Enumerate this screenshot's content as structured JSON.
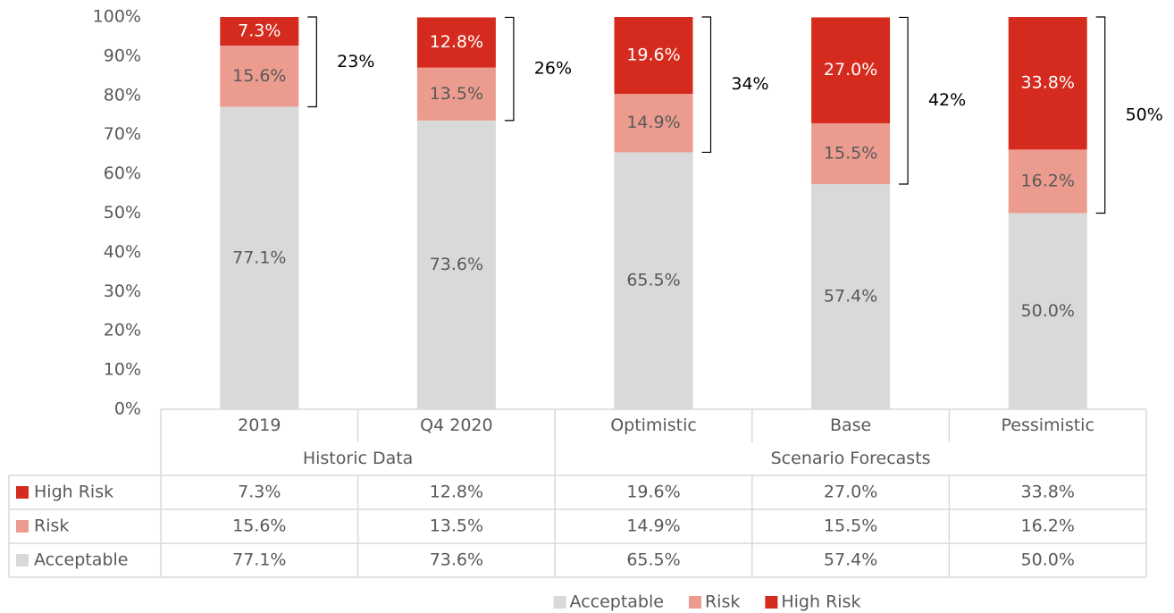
{
  "chart_data": {
    "type": "stacked_bar",
    "categories": [
      "2019",
      "Q4 2020",
      "Optimistic",
      "Base",
      "Pessimistic"
    ],
    "groups": [
      {
        "label": "Historic Data",
        "categories": [
          "2019",
          "Q4 2020"
        ]
      },
      {
        "label": "Scenario Forecasts",
        "categories": [
          "Optimistic",
          "Base",
          "Pessimistic"
        ]
      }
    ],
    "series": [
      {
        "name": "Acceptable",
        "color": "#d9d9d9",
        "label_color": "#595959",
        "values": [
          77.1,
          73.6,
          65.5,
          57.4,
          50.0
        ],
        "value_labels": [
          "77.1%",
          "73.6%",
          "65.5%",
          "57.4%",
          "50.0%"
        ]
      },
      {
        "name": "Risk",
        "color": "#eb9c8f",
        "label_color": "#595959",
        "values": [
          15.6,
          13.5,
          14.9,
          15.5,
          16.2
        ],
        "value_labels": [
          "15.6%",
          "13.5%",
          "14.9%",
          "15.5%",
          "16.2%"
        ]
      },
      {
        "name": "High Risk",
        "color": "#d52b1e",
        "label_color": "#ffffff",
        "values": [
          7.3,
          12.8,
          19.6,
          27.0,
          33.8
        ],
        "value_labels": [
          "7.3%",
          "12.8%",
          "19.6%",
          "27.0%",
          "33.8%"
        ]
      }
    ],
    "brackets": {
      "values": [
        23,
        26,
        34,
        42,
        50
      ],
      "value_labels": [
        "23%",
        "26%",
        "34%",
        "42%",
        "50%"
      ]
    },
    "ylim": [
      0,
      100
    ],
    "yticks": [
      {
        "value": 0,
        "label": "0%"
      },
      {
        "value": 10,
        "label": "10%"
      },
      {
        "value": 20,
        "label": "20%"
      },
      {
        "value": 30,
        "label": "30%"
      },
      {
        "value": 40,
        "label": "40%"
      },
      {
        "value": 50,
        "label": "50%"
      },
      {
        "value": 60,
        "label": "60%"
      },
      {
        "value": 70,
        "label": "70%"
      },
      {
        "value": 80,
        "label": "80%"
      },
      {
        "value": 90,
        "label": "90%"
      },
      {
        "value": 100,
        "label": "100%"
      }
    ],
    "grid": false
  }
}
